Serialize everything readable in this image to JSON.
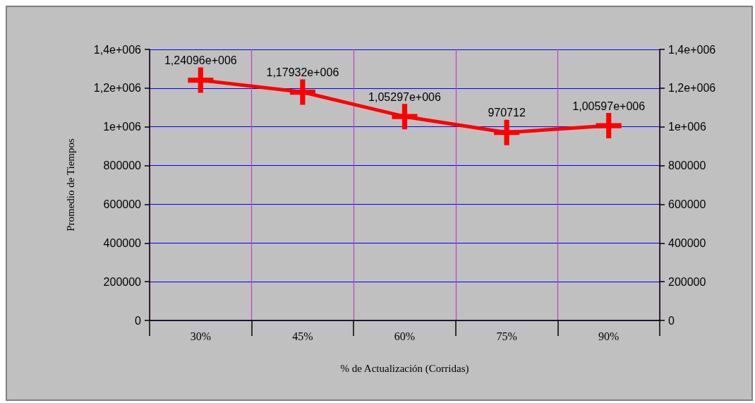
{
  "chart_data": {
    "type": "line",
    "xlabel": "% de Actualización (Corridas)",
    "ylabel": "Promedio de Tiempos",
    "categories": [
      "30%",
      "45%",
      "60%",
      "75%",
      "90%"
    ],
    "series": [
      {
        "color": "#ff0000",
        "values": [
          1240960,
          1179320,
          1052970,
          970712,
          1005970
        ],
        "value_labels": [
          "1,24096e+006",
          "1,17932e+006",
          "1,05297e+006",
          "970712",
          "1,00597e+006"
        ]
      }
    ],
    "ylim": [
      0,
      1400000
    ],
    "yticks": [
      0,
      200000,
      400000,
      600000,
      800000,
      {
        "value": 1000000,
        "label": "1e+006"
      },
      {
        "value": 1200000,
        "label": "1,2e+006"
      },
      {
        "value": 1400000,
        "label": "1,4e+006"
      }
    ],
    "y2lim": [
      0,
      1400000
    ],
    "y2ticks": [
      0,
      200000,
      400000,
      600000,
      800000,
      {
        "value": 1000000,
        "label": "1e+006"
      },
      {
        "value": 1200000,
        "label": "1,2e+006"
      },
      {
        "value": 1400000,
        "label": "1,4e+006"
      }
    ],
    "grid": true,
    "marker": "cross",
    "line_style": "solid"
  }
}
